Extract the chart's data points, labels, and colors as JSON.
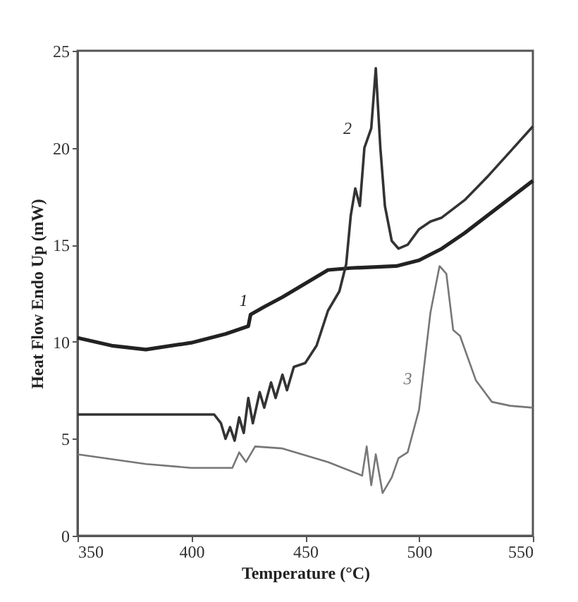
{
  "chart_data": {
    "type": "line",
    "xlabel": "Temperature (°C)",
    "ylabel": "Heat Flow Endo Up (mW)",
    "xlim": [
      350,
      550
    ],
    "xticks": [
      350,
      400,
      450,
      500,
      550
    ],
    "ylim": [
      0,
      25
    ],
    "yticks": [
      0,
      5,
      10,
      15,
      20,
      25
    ],
    "grid": false,
    "series": [
      {
        "name": "1",
        "color": "#222222",
        "x": [
          350,
          365,
          380,
          400,
          415,
          425,
          426,
          432,
          440,
          450,
          460,
          470,
          480,
          490,
          500,
          510,
          520,
          530,
          540,
          550
        ],
        "values": [
          10.2,
          9.8,
          9.6,
          9.95,
          10.4,
          10.8,
          11.4,
          11.8,
          12.3,
          13.0,
          13.7,
          13.8,
          13.85,
          13.9,
          14.2,
          14.8,
          15.6,
          16.5,
          17.4,
          18.3
        ]
      },
      {
        "name": "2",
        "color": "#333333",
        "x": [
          350,
          380,
          410,
          413,
          415,
          417,
          419,
          421,
          423,
          425,
          427,
          430,
          432,
          435,
          437,
          440,
          442,
          445,
          450,
          455,
          460,
          465,
          468,
          470,
          472,
          474,
          476,
          479,
          481,
          483,
          485,
          488,
          491,
          495,
          500,
          505,
          510,
          520,
          530,
          540,
          550
        ],
        "values": [
          6.25,
          6.25,
          6.25,
          5.8,
          5.0,
          5.6,
          4.9,
          6.1,
          5.3,
          7.1,
          5.8,
          7.4,
          6.6,
          7.9,
          7.1,
          8.3,
          7.5,
          8.7,
          8.9,
          9.8,
          11.6,
          12.6,
          14.0,
          16.5,
          17.9,
          17.0,
          20.0,
          21.0,
          24.1,
          20.0,
          17.0,
          15.2,
          14.8,
          15.0,
          15.8,
          16.2,
          16.4,
          17.3,
          18.5,
          19.8,
          21.1
        ]
      },
      {
        "name": "3",
        "color": "#777777",
        "x": [
          350,
          380,
          400,
          418,
          421,
          424,
          428,
          440,
          460,
          475,
          477,
          479,
          481,
          484,
          488,
          491,
          495,
          500,
          505,
          509,
          512,
          515,
          518,
          525,
          532,
          540,
          550
        ],
        "values": [
          4.2,
          3.7,
          3.5,
          3.5,
          4.3,
          3.8,
          4.6,
          4.5,
          3.8,
          3.1,
          4.6,
          2.6,
          4.2,
          2.2,
          3.0,
          4.0,
          4.3,
          6.5,
          11.5,
          13.9,
          13.5,
          10.6,
          10.3,
          8.0,
          6.9,
          6.7,
          6.6
        ]
      }
    ]
  }
}
